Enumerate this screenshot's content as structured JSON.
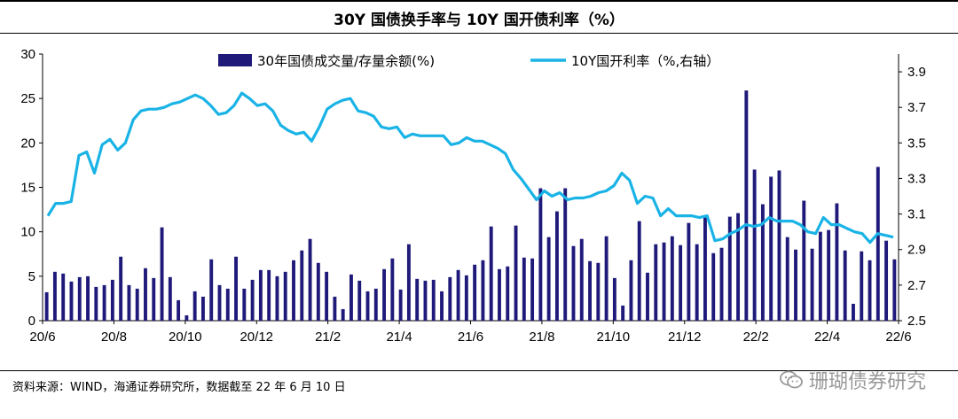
{
  "chart_data": {
    "type": "bar+line",
    "title": "30Y 国债换手率与 10Y 国开债利率（%）",
    "x_ticks": [
      "20/6",
      "20/8",
      "20/10",
      "20/12",
      "21/2",
      "21/4",
      "21/6",
      "21/8",
      "21/10",
      "21/12",
      "22/2",
      "22/4",
      "22/6"
    ],
    "y_left": {
      "min": 0,
      "max": 30,
      "ticks": [
        "0",
        "5",
        "10",
        "15",
        "20",
        "25",
        "30"
      ]
    },
    "y_right": {
      "min": 2.5,
      "max": 4.0,
      "ticks": [
        "2.5",
        "2.7",
        "2.9",
        "3.1",
        "3.3",
        "3.5",
        "3.7",
        "3.9"
      ]
    },
    "legend": {
      "bar": "30年国债成交量/存量余额(%)",
      "line": "10Y国开利率（%,右轴）"
    },
    "colors": {
      "bar": "#1f1a7a",
      "line": "#1ab3e6"
    },
    "bars": {
      "name": "30年国债成交量/存量余额(%)",
      "values": [
        3.2,
        5.5,
        5.3,
        4.4,
        4.9,
        5.0,
        3.8,
        4.0,
        4.6,
        7.2,
        4.0,
        3.6,
        5.9,
        4.8,
        10.5,
        4.9,
        2.3,
        0.6,
        3.3,
        2.7,
        6.9,
        4.0,
        3.6,
        7.2,
        3.6,
        4.6,
        5.7,
        5.7,
        5.0,
        5.5,
        6.8,
        7.9,
        9.2,
        6.5,
        5.5,
        2.7,
        1.3,
        5.2,
        4.5,
        3.3,
        3.6,
        5.8,
        7.0,
        3.5,
        8.6,
        4.7,
        4.5,
        4.6,
        3.3,
        4.9,
        5.7,
        5.1,
        6.3,
        6.8,
        10.6,
        5.8,
        6.1,
        10.7,
        7.1,
        7.0,
        14.9,
        9.4,
        12.3,
        14.9,
        8.4,
        9.2,
        6.7,
        6.5,
        9.5,
        4.8,
        1.7,
        6.8,
        11.2,
        5.4,
        8.6,
        8.8,
        9.5,
        8.5,
        11.0,
        8.6,
        11.8,
        7.6,
        8.2,
        11.7,
        12.1,
        25.9,
        17.0,
        13.1,
        16.2,
        16.9,
        9.4,
        8.0,
        13.5,
        8.1,
        10.0,
        10.2,
        13.2,
        7.9,
        1.9,
        7.8,
        6.8,
        17.3,
        9.0,
        6.9
      ]
    },
    "line": {
      "name": "10Y国开利率（%,右轴）",
      "values": [
        3.09,
        3.16,
        3.16,
        3.17,
        3.43,
        3.45,
        3.33,
        3.49,
        3.52,
        3.46,
        3.5,
        3.63,
        3.68,
        3.69,
        3.69,
        3.7,
        3.72,
        3.73,
        3.75,
        3.77,
        3.75,
        3.71,
        3.66,
        3.67,
        3.71,
        3.78,
        3.75,
        3.71,
        3.72,
        3.68,
        3.6,
        3.57,
        3.55,
        3.56,
        3.51,
        3.59,
        3.69,
        3.72,
        3.74,
        3.75,
        3.68,
        3.67,
        3.65,
        3.59,
        3.58,
        3.59,
        3.53,
        3.55,
        3.54,
        3.54,
        3.54,
        3.54,
        3.49,
        3.5,
        3.53,
        3.51,
        3.51,
        3.49,
        3.47,
        3.44,
        3.35,
        3.3,
        3.24,
        3.18,
        3.23,
        3.2,
        3.22,
        3.18,
        3.19,
        3.19,
        3.2,
        3.22,
        3.23,
        3.26,
        3.33,
        3.29,
        3.16,
        3.2,
        3.19,
        3.09,
        3.13,
        3.09,
        3.09,
        3.09,
        3.08,
        3.09,
        2.95,
        2.96,
        2.99,
        3.01,
        3.04,
        3.03,
        3.04,
        3.08,
        3.06,
        3.06,
        3.06,
        3.04,
        3.0,
        2.99,
        3.08,
        3.04,
        3.04,
        3.02,
        3.0,
        2.99,
        2.94,
        2.99,
        2.98,
        2.97
      ]
    }
  },
  "source": "资料来源：WIND，海通证券研究所，数据截至 22 年 6 月 10 日",
  "watermark": "珊瑚债券研究"
}
